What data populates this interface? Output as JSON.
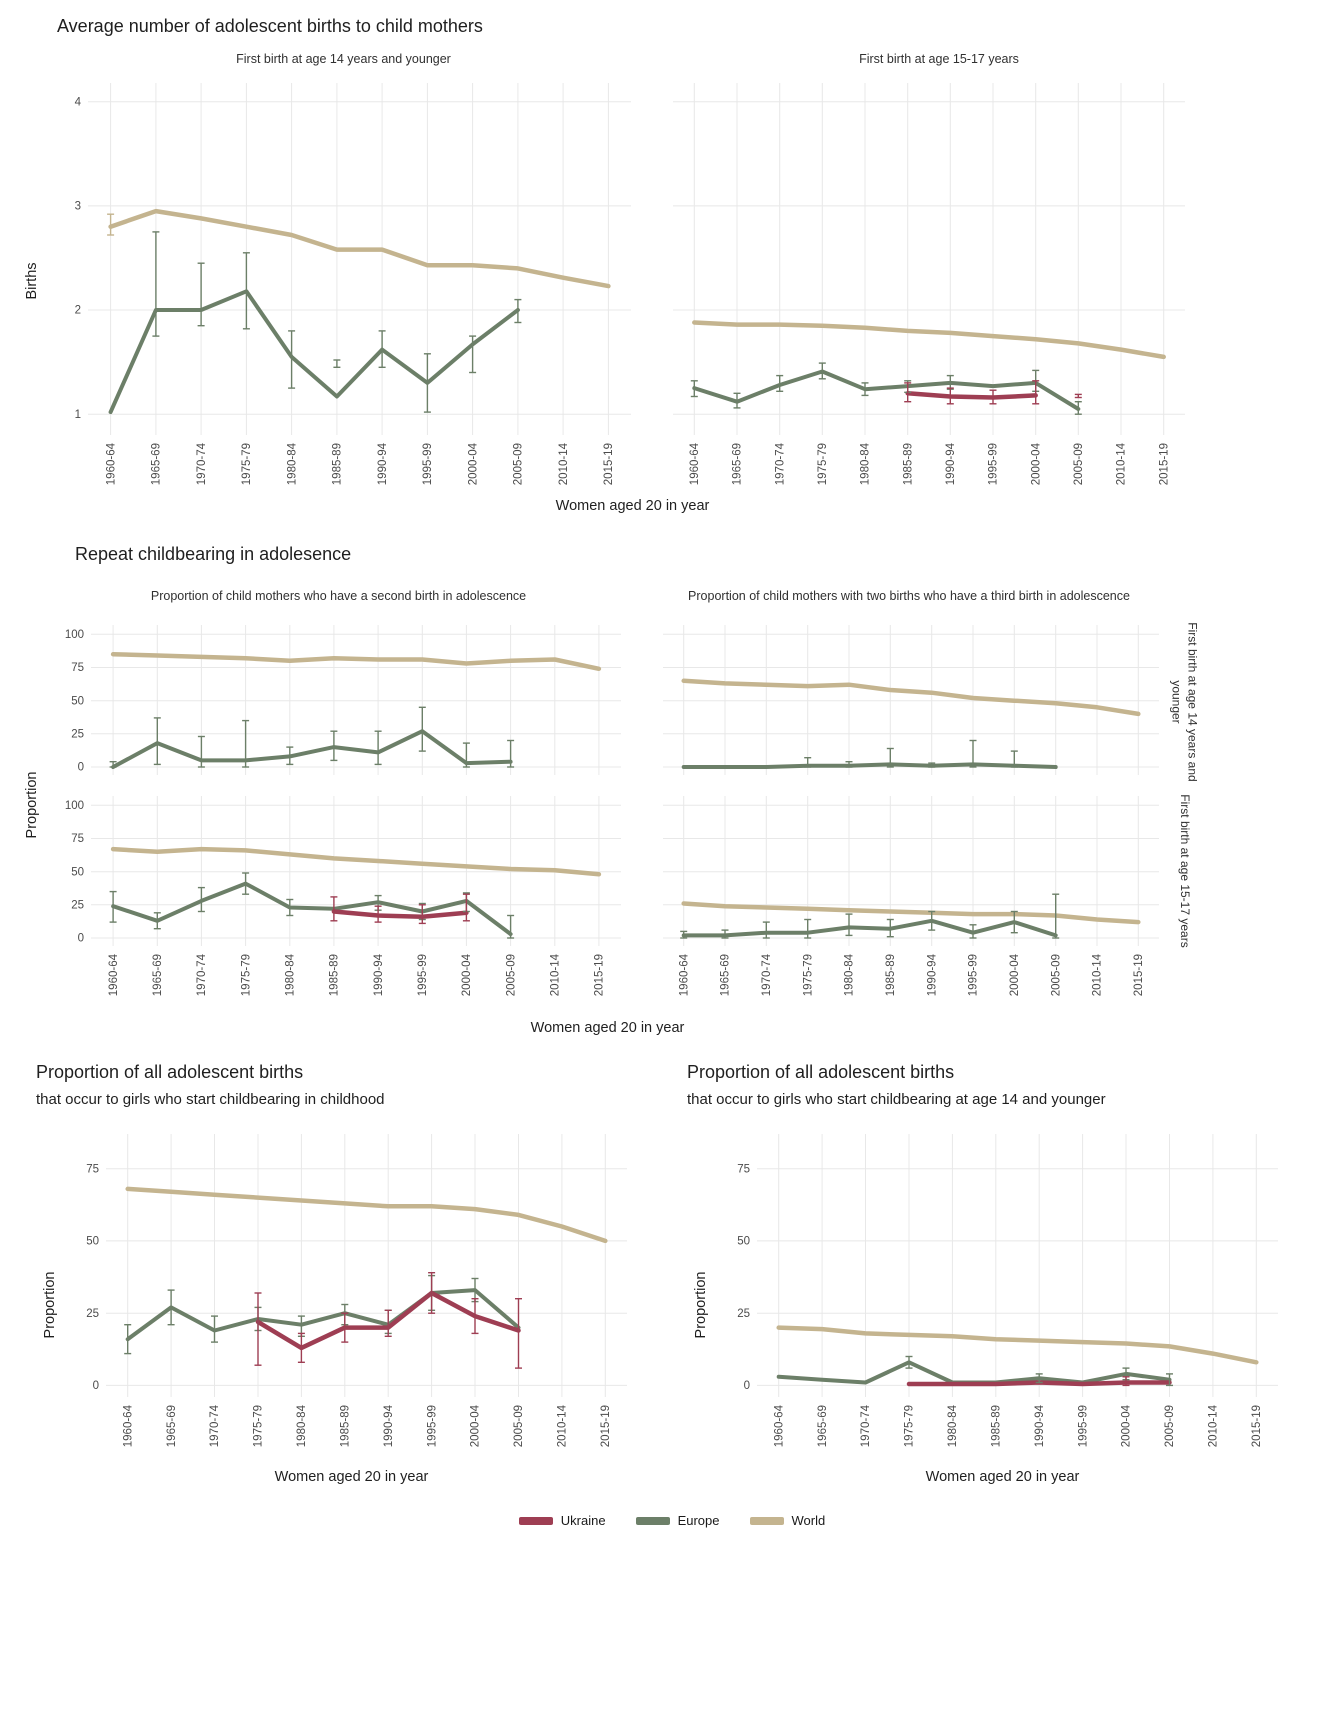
{
  "style": {
    "grid_color": "#e8e8e8"
  },
  "sections": {
    "avg": {
      "title": "Average number of adolescent births to child mothers"
    },
    "repeat": {
      "title": "Repeat childbearing in adolesence"
    }
  },
  "legend": {
    "items": [
      {
        "label": "Ukraine",
        "color": "#9e3e53"
      },
      {
        "label": "Europe",
        "color": "#6c7f68"
      },
      {
        "label": "World",
        "color": "#c4b48f"
      }
    ]
  },
  "chart_data": {
    "type": "line",
    "categories": [
      "1960-64",
      "1965-69",
      "1970-74",
      "1975-79",
      "1980-84",
      "1985-89",
      "1990-94",
      "1995-99",
      "2000-04",
      "2005-09",
      "2010-14",
      "2015-19"
    ],
    "charts": [
      {
        "id": "births14",
        "type": "line",
        "title": "First birth at age 14 years and younger",
        "ylabel": "Births",
        "xlabel": "Women aged 20 in year",
        "ylim": [
          0.8,
          4.18
        ],
        "yticks": [
          1,
          2,
          3,
          4
        ],
        "series": [
          {
            "name": "World",
            "color": "#c4b48f",
            "values": [
              2.8,
              2.95,
              2.88,
              2.8,
              2.72,
              2.58,
              2.58,
              2.43,
              2.43,
              2.4,
              2.31,
              2.23
            ],
            "err": [
              [
                2.72,
                2.92
              ],
              null,
              null,
              null,
              null,
              null,
              null,
              null,
              null,
              null,
              null,
              null
            ]
          },
          {
            "name": "Europe",
            "color": "#6c7f68",
            "values": [
              1.02,
              2.0,
              2.0,
              2.18,
              1.55,
              1.17,
              1.62,
              1.3,
              1.67,
              2.0,
              null,
              null
            ],
            "err": [
              null,
              [
                1.75,
                2.75
              ],
              [
                1.85,
                2.45
              ],
              [
                1.82,
                2.55
              ],
              [
                1.25,
                1.8
              ],
              [
                1.45,
                1.52
              ],
              [
                1.45,
                1.8
              ],
              [
                1.02,
                1.58
              ],
              [
                1.4,
                1.75
              ],
              [
                1.88,
                2.1
              ],
              null,
              null
            ]
          }
        ]
      },
      {
        "id": "births1517",
        "type": "line",
        "title": "First birth at age 15-17 years",
        "ylim": [
          0.8,
          4.18
        ],
        "yticks": [
          1,
          2,
          3,
          4
        ],
        "series": [
          {
            "name": "World",
            "color": "#c4b48f",
            "values": [
              1.88,
              1.86,
              1.86,
              1.85,
              1.83,
              1.8,
              1.78,
              1.75,
              1.72,
              1.68,
              1.62,
              1.55
            ]
          },
          {
            "name": "Europe",
            "color": "#6c7f68",
            "values": [
              1.25,
              1.12,
              1.28,
              1.41,
              1.24,
              1.27,
              1.3,
              1.27,
              1.3,
              1.05,
              null,
              null
            ],
            "err": [
              [
                1.17,
                1.32
              ],
              [
                1.06,
                1.2
              ],
              [
                1.22,
                1.37
              ],
              [
                1.34,
                1.49
              ],
              [
                1.18,
                1.3
              ],
              [
                1.21,
                1.32
              ],
              [
                1.24,
                1.37
              ],
              null,
              [
                1.22,
                1.42
              ],
              [
                1.0,
                1.12
              ],
              null,
              null
            ]
          },
          {
            "name": "Ukraine",
            "color": "#9e3e53",
            "values": [
              null,
              null,
              null,
              null,
              null,
              1.2,
              1.17,
              1.16,
              1.18,
              null,
              null,
              null
            ],
            "err": [
              null,
              null,
              null,
              null,
              null,
              [
                1.12,
                1.3
              ],
              [
                1.1,
                1.25
              ],
              [
                1.1,
                1.23
              ],
              [
                1.1,
                1.32
              ],
              [
                1.16,
                1.19
              ],
              null,
              null
            ]
          }
        ]
      },
      {
        "id": "second14",
        "type": "line",
        "title": "Proportion of child mothers who have a second birth in adolescence",
        "facet_row": "First birth at age 14 years and younger",
        "ylabel": "Proportion",
        "xlabel": "Women aged 20 in year",
        "ylim": [
          -6,
          107
        ],
        "yticks": [
          0,
          25,
          50,
          75,
          100
        ],
        "series": [
          {
            "name": "World",
            "color": "#c4b48f",
            "values": [
              85,
              84,
              83,
              82,
              80,
              82,
              81,
              81,
              78,
              80,
              81,
              74
            ]
          },
          {
            "name": "Europe",
            "color": "#6c7f68",
            "values": [
              0,
              18,
              5,
              5,
              8,
              15,
              11,
              27,
              3,
              4,
              null,
              null
            ],
            "err": [
              [
                0,
                4
              ],
              [
                2,
                37
              ],
              [
                0,
                23
              ],
              [
                0,
                35
              ],
              [
                2,
                15
              ],
              [
                5,
                27
              ],
              [
                2,
                27
              ],
              [
                12,
                45
              ],
              [
                0,
                18
              ],
              [
                0,
                20
              ],
              null,
              null
            ]
          }
        ]
      },
      {
        "id": "third14",
        "type": "line",
        "title": "Proportion of child mothers with two births who have a third birth in adolescence",
        "facet_row": "First birth at age 14 years and younger",
        "ylim": [
          -6,
          107
        ],
        "yticks": [
          0,
          25,
          50,
          75,
          100
        ],
        "series": [
          {
            "name": "World",
            "color": "#c4b48f",
            "values": [
              65,
              63,
              62,
              61,
              62,
              58,
              56,
              52,
              50,
              48,
              45,
              40
            ]
          },
          {
            "name": "Europe",
            "color": "#6c7f68",
            "values": [
              0,
              0,
              0,
              1,
              1,
              2,
              1,
              2,
              1,
              0,
              null,
              null
            ],
            "err": [
              null,
              null,
              null,
              [
                0,
                7
              ],
              [
                0,
                4
              ],
              [
                0,
                14
              ],
              [
                0,
                3
              ],
              [
                0,
                20
              ],
              [
                0,
                12
              ],
              null,
              null,
              null
            ]
          }
        ]
      },
      {
        "id": "second1517",
        "type": "line",
        "facet_row": "First birth at age 15-17 years",
        "ylim": [
          -6,
          107
        ],
        "yticks": [
          0,
          25,
          50,
          75,
          100
        ],
        "series": [
          {
            "name": "World",
            "color": "#c4b48f",
            "values": [
              67,
              65,
              67,
              66,
              63,
              60,
              58,
              56,
              54,
              52,
              51,
              48
            ]
          },
          {
            "name": "Europe",
            "color": "#6c7f68",
            "values": [
              24,
              13,
              28,
              41,
              23,
              22,
              27,
              20,
              28,
              3,
              null,
              null
            ],
            "err": [
              [
                12,
                35
              ],
              [
                7,
                19
              ],
              [
                20,
                38
              ],
              [
                33,
                49
              ],
              [
                17,
                29
              ],
              null,
              [
                21,
                32
              ],
              [
                14,
                26
              ],
              [
                20,
                34
              ],
              [
                0,
                17
              ],
              null,
              null
            ]
          },
          {
            "name": "Ukraine",
            "color": "#9e3e53",
            "values": [
              null,
              null,
              null,
              null,
              null,
              20,
              17,
              16,
              19,
              null,
              null,
              null
            ],
            "err": [
              null,
              null,
              null,
              null,
              null,
              [
                13,
                31
              ],
              [
                12,
                24
              ],
              [
                11,
                25
              ],
              [
                13,
                33
              ],
              null,
              null,
              null
            ]
          }
        ]
      },
      {
        "id": "third1517",
        "type": "line",
        "facet_row": "First birth at age 15-17 years",
        "ylim": [
          -6,
          107
        ],
        "yticks": [
          0,
          25,
          50,
          75,
          100
        ],
        "series": [
          {
            "name": "World",
            "color": "#c4b48f",
            "values": [
              26,
              24,
              23,
              22,
              21,
              20,
              19,
              18,
              18,
              17,
              14,
              12
            ]
          },
          {
            "name": "Europe",
            "color": "#6c7f68",
            "values": [
              2,
              2,
              4,
              4,
              8,
              7,
              13,
              4,
              12,
              2,
              null,
              null
            ],
            "err": [
              [
                0,
                5
              ],
              [
                0,
                6
              ],
              [
                0,
                12
              ],
              [
                0,
                14
              ],
              [
                2,
                18
              ],
              [
                1,
                14
              ],
              [
                6,
                20
              ],
              [
                0,
                10
              ],
              [
                4,
                20
              ],
              [
                0,
                33
              ],
              null,
              null
            ]
          }
        ]
      },
      {
        "id": "childhood",
        "type": "line",
        "title": "Proportion of all adolescent births",
        "subtitle": "that occur to girls who start childbearing in childhood",
        "ylabel": "Proportion",
        "xlabel": "Women aged 20 in year",
        "ylim": [
          -4,
          87
        ],
        "yticks": [
          0,
          25,
          50,
          75
        ],
        "series": [
          {
            "name": "World",
            "color": "#c4b48f",
            "values": [
              68,
              67,
              66,
              65,
              64,
              63,
              62,
              62,
              61,
              59,
              55,
              50
            ]
          },
          {
            "name": "Europe",
            "color": "#6c7f68",
            "values": [
              16,
              27,
              19,
              23,
              21,
              25,
              21,
              32,
              33,
              20,
              null,
              null
            ],
            "err": [
              [
                11,
                21
              ],
              [
                21,
                33
              ],
              [
                15,
                24
              ],
              [
                19,
                27
              ],
              [
                17,
                24
              ],
              [
                21,
                28
              ],
              [
                18,
                26
              ],
              [
                26,
                38
              ],
              [
                29,
                37
              ],
              null,
              null,
              null
            ]
          },
          {
            "name": "Ukraine",
            "color": "#9e3e53",
            "values": [
              null,
              null,
              null,
              22,
              13,
              20,
              20,
              32,
              24,
              19,
              null,
              null
            ],
            "err": [
              null,
              null,
              null,
              [
                7,
                32
              ],
              [
                8,
                18
              ],
              [
                15,
                25
              ],
              [
                17,
                26
              ],
              [
                25,
                39
              ],
              [
                18,
                30
              ],
              [
                6,
                30
              ],
              null,
              null
            ]
          }
        ]
      },
      {
        "id": "age14",
        "type": "line",
        "title": "Proportion of all adolescent births",
        "subtitle": "that occur to girls who start childbearing at age 14 and younger",
        "ylabel": "Proportion",
        "xlabel": "Women aged 20 in year",
        "ylim": [
          -4,
          87
        ],
        "yticks": [
          0,
          25,
          50,
          75
        ],
        "series": [
          {
            "name": "World",
            "color": "#c4b48f",
            "values": [
              20,
              19.5,
              18,
              17.5,
              17,
              16,
              15.5,
              15,
              14.5,
              13.5,
              11,
              8
            ]
          },
          {
            "name": "Europe",
            "color": "#6c7f68",
            "values": [
              3,
              2,
              1,
              8,
              1,
              1,
              2.5,
              1,
              4,
              2,
              null,
              null
            ],
            "err": [
              null,
              null,
              null,
              [
                6,
                10
              ],
              null,
              null,
              [
                1,
                4
              ],
              null,
              [
                2,
                6
              ],
              [
                0,
                4
              ],
              null,
              null
            ]
          },
          {
            "name": "Ukraine",
            "color": "#9e3e53",
            "values": [
              null,
              null,
              null,
              0.5,
              0.5,
              0.5,
              1,
              0.5,
              1,
              1,
              null,
              null
            ],
            "err": [
              null,
              null,
              null,
              null,
              null,
              null,
              null,
              null,
              [
                0,
                3
              ],
              null,
              null,
              null
            ]
          }
        ]
      }
    ]
  }
}
